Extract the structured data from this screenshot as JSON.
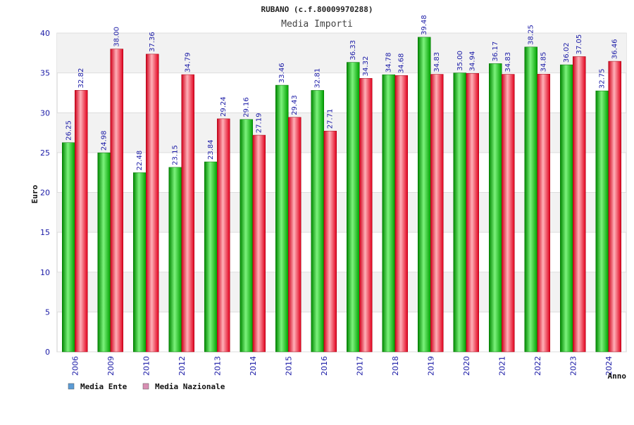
{
  "chart_data": {
    "type": "bar",
    "title": "RUBANO (c.f.80009970288)",
    "subtitle": "Media Importi",
    "xlabel": "Anno",
    "ylabel": "Euro",
    "ylim": [
      0,
      40
    ],
    "yticks": [
      0,
      5,
      10,
      15,
      20,
      25,
      30,
      35,
      40
    ],
    "grid": true,
    "legend_position": "bottom-left",
    "categories": [
      "2006",
      "2009",
      "2010",
      "2012",
      "2013",
      "2014",
      "2015",
      "2016",
      "2017",
      "2018",
      "2019",
      "2020",
      "2021",
      "2022",
      "2023",
      "2024"
    ],
    "series": [
      {
        "name": "Media Ente",
        "legend_color": "#5b9bd5",
        "bar_color": "#00b000",
        "values": [
          26.25,
          24.98,
          22.48,
          23.15,
          23.84,
          29.16,
          33.46,
          32.81,
          36.33,
          34.78,
          39.48,
          35.0,
          36.17,
          38.25,
          36.02,
          32.75
        ],
        "labels": [
          "26.25",
          "24.98",
          "22.48",
          "23.15",
          "23.84",
          "29.16",
          "33.46",
          "32.81",
          "36.33",
          "34.78",
          "39.48",
          "35.00",
          "36.17",
          "38.25",
          "36.02",
          "32.75"
        ]
      },
      {
        "name": "Media Nazionale",
        "legend_color": "#d98fb3",
        "bar_color": "#e8001c",
        "values": [
          32.82,
          38.0,
          37.36,
          34.79,
          29.24,
          27.19,
          29.43,
          27.71,
          34.32,
          34.68,
          34.83,
          34.94,
          34.83,
          34.85,
          37.05,
          36.46
        ],
        "labels": [
          "32.82",
          "38.00",
          "37.36",
          "34.79",
          "29.24",
          "27.19",
          "29.43",
          "27.71",
          "34.32",
          "34.68",
          "34.83",
          "34.94",
          "34.83",
          "34.85",
          "37.05",
          "36.46"
        ]
      }
    ]
  }
}
